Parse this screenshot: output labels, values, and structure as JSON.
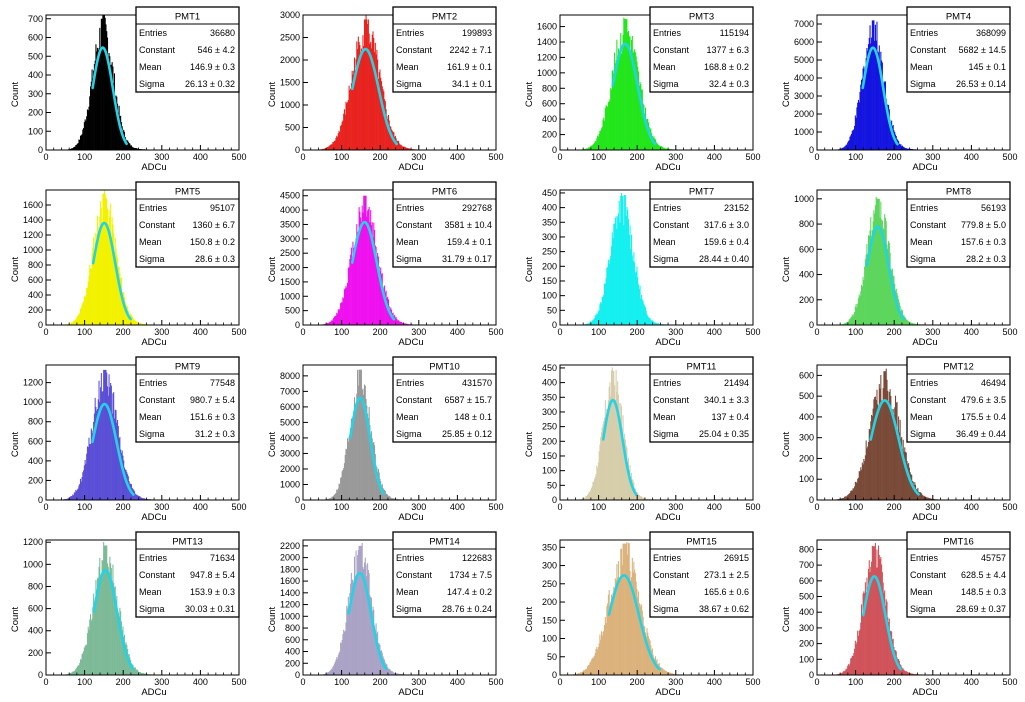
{
  "figure": {
    "shared_xlabel": "ADCu",
    "shared_ylabel": "Count",
    "x_ticks": [
      "0",
      "100",
      "200",
      "300",
      "400",
      "500"
    ],
    "stat_labels": [
      "Entries",
      "Constant",
      "Mean",
      "Sigma"
    ],
    "fit_color": "#22d3e6"
  },
  "chart_data": [
    {
      "type": "histogram",
      "title": "PMT1",
      "xlabel": "ADCu",
      "ylabel": "Count",
      "xlim": [
        0,
        500
      ],
      "ylim": [
        0,
        720
      ],
      "yticks": [
        0,
        100,
        200,
        300,
        400,
        500,
        600,
        700
      ],
      "color": "#000000",
      "entries": "36680",
      "constant": "546 ± 4.2",
      "mean": "146.9 ± 0.3",
      "sigma": "26.13 ± 0.32",
      "peak": 700,
      "mean_value": 146.9,
      "sigma_value": 26.13,
      "fit_peak": 546,
      "fit": true
    },
    {
      "type": "histogram",
      "title": "PMT2",
      "xlabel": "ADCu",
      "ylabel": "Count",
      "xlim": [
        0,
        500
      ],
      "ylim": [
        0,
        3000
      ],
      "yticks": [
        0,
        500,
        1000,
        1500,
        2000,
        2500,
        3000
      ],
      "color": "#e8231f",
      "entries": "199893",
      "constant": "2242 ± 7.1",
      "mean": "161.9 ± 0.1",
      "sigma": "34.1 ± 0.1",
      "peak": 2900,
      "mean_value": 161.9,
      "sigma_value": 34.1,
      "fit_peak": 2242,
      "fit": true
    },
    {
      "type": "histogram",
      "title": "PMT3",
      "xlabel": "ADCu",
      "ylabel": "Count",
      "xlim": [
        0,
        500
      ],
      "ylim": [
        0,
        1750
      ],
      "yticks": [
        0,
        200,
        400,
        600,
        800,
        1000,
        1200,
        1400,
        1600
      ],
      "color": "#22e61a",
      "entries": "115194",
      "constant": "1377 ± 6.3",
      "mean": "168.8 ± 0.2",
      "sigma": "32.4 ± 0.3",
      "peak": 1700,
      "mean_value": 168.8,
      "sigma_value": 32.4,
      "fit_peak": 1377,
      "fit": true
    },
    {
      "type": "histogram",
      "title": "PMT4",
      "xlabel": "ADCu",
      "ylabel": "Count",
      "xlim": [
        0,
        500
      ],
      "ylim": [
        0,
        7500
      ],
      "yticks": [
        0,
        1000,
        2000,
        3000,
        4000,
        5000,
        6000,
        7000
      ],
      "color": "#1414e0",
      "entries": "368099",
      "constant": "5682 ± 14.5",
      "mean": "145 ± 0.1",
      "sigma": "26.53 ± 0.14",
      "peak": 7200,
      "mean_value": 145,
      "sigma_value": 26.53,
      "fit_peak": 5682,
      "fit": true
    },
    {
      "type": "histogram",
      "title": "PMT5",
      "xlabel": "ADCu",
      "ylabel": "Count",
      "xlim": [
        0,
        500
      ],
      "ylim": [
        0,
        1800
      ],
      "yticks": [
        0,
        200,
        400,
        600,
        800,
        1000,
        1200,
        1400,
        1600
      ],
      "color": "#f2f200",
      "entries": "95107",
      "constant": "1360 ± 6.7",
      "mean": "150.8 ± 0.2",
      "sigma": "28.6 ± 0.3",
      "peak": 1750,
      "mean_value": 150.8,
      "sigma_value": 28.6,
      "fit_peak": 1360,
      "fit": true
    },
    {
      "type": "histogram",
      "title": "PMT6",
      "xlabel": "ADCu",
      "ylabel": "Count",
      "xlim": [
        0,
        500
      ],
      "ylim": [
        0,
        4700
      ],
      "yticks": [
        0,
        500,
        1000,
        1500,
        2000,
        2500,
        3000,
        3500,
        4000,
        4500
      ],
      "color": "#ee11ee",
      "entries": "292768",
      "constant": "3581 ± 10.4",
      "mean": "159.4 ± 0.1",
      "sigma": "31.79 ± 0.17",
      "peak": 4500,
      "mean_value": 159.4,
      "sigma_value": 31.79,
      "fit_peak": 3581,
      "fit": true
    },
    {
      "type": "histogram",
      "title": "PMT7",
      "xlabel": "ADCu",
      "ylabel": "Count",
      "xlim": [
        0,
        500
      ],
      "ylim": [
        0,
        460
      ],
      "yticks": [
        0,
        50,
        100,
        150,
        200,
        250,
        300,
        350,
        400,
        450
      ],
      "color": "#14f0f0",
      "entries": "23152",
      "constant": "317.6 ± 3.0",
      "mean": "159.6 ± 0.4",
      "sigma": "28.44 ± 0.40",
      "peak": 440,
      "mean_value": 159.6,
      "sigma_value": 28.44,
      "fit_peak": 317.6,
      "fit": false
    },
    {
      "type": "histogram",
      "title": "PMT8",
      "xlabel": "ADCu",
      "ylabel": "Count",
      "xlim": [
        0,
        500
      ],
      "ylim": [
        0,
        1070
      ],
      "yticks": [
        0,
        200,
        400,
        600,
        800,
        1000
      ],
      "color": "#5cd65c",
      "entries": "56193",
      "constant": "779.8 ± 5.0",
      "mean": "157.6 ± 0.3",
      "sigma": "28.2 ± 0.3",
      "peak": 1000,
      "mean_value": 157.6,
      "sigma_value": 28.2,
      "fit_peak": 779.8,
      "fit": true
    },
    {
      "type": "histogram",
      "title": "PMT9",
      "xlabel": "ADCu",
      "ylabel": "Count",
      "xlim": [
        0,
        500
      ],
      "ylim": [
        0,
        1380
      ],
      "yticks": [
        0,
        200,
        400,
        600,
        800,
        1000,
        1200
      ],
      "color": "#5a4fd6",
      "entries": "77548",
      "constant": "980.7 ± 5.4",
      "mean": "151.6 ± 0.3",
      "sigma": "31.2 ± 0.3",
      "peak": 1330,
      "mean_value": 151.6,
      "sigma_value": 31.2,
      "fit_peak": 980.7,
      "fit": true
    },
    {
      "type": "histogram",
      "title": "PMT10",
      "xlabel": "ADCu",
      "ylabel": "Count",
      "xlim": [
        0,
        500
      ],
      "ylim": [
        0,
        8700
      ],
      "yticks": [
        0,
        1000,
        2000,
        3000,
        4000,
        5000,
        6000,
        7000,
        8000
      ],
      "color": "#999999",
      "entries": "431570",
      "constant": "6587 ± 15.7",
      "mean": "148 ± 0.1",
      "sigma": "25.85 ± 0.12",
      "peak": 8400,
      "mean_value": 148,
      "sigma_value": 25.85,
      "fit_peak": 6587,
      "fit": true
    },
    {
      "type": "histogram",
      "title": "PMT11",
      "xlabel": "ADCu",
      "ylabel": "Count",
      "xlim": [
        0,
        500
      ],
      "ylim": [
        0,
        460
      ],
      "yticks": [
        0,
        50,
        100,
        150,
        200,
        250,
        300,
        350,
        400,
        450
      ],
      "color": "#d6cdaa",
      "entries": "21494",
      "constant": "340.1 ± 3.3",
      "mean": "137 ± 0.4",
      "sigma": "25.04 ± 0.35",
      "peak": 440,
      "mean_value": 137,
      "sigma_value": 25.04,
      "fit_peak": 340.1,
      "fit": true
    },
    {
      "type": "histogram",
      "title": "PMT12",
      "xlabel": "ADCu",
      "ylabel": "Count",
      "xlim": [
        0,
        500
      ],
      "ylim": [
        0,
        650
      ],
      "yticks": [
        0,
        100,
        200,
        300,
        400,
        500,
        600
      ],
      "color": "#7a4a38",
      "entries": "46494",
      "constant": "479.6 ± 3.5",
      "mean": "175.5 ± 0.4",
      "sigma": "36.49 ± 0.44",
      "peak": 620,
      "mean_value": 175.5,
      "sigma_value": 36.49,
      "fit_peak": 479.6,
      "fit": true
    },
    {
      "type": "histogram",
      "title": "PMT13",
      "xlabel": "ADCu",
      "ylabel": "Count",
      "xlim": [
        0,
        500
      ],
      "ylim": [
        0,
        1220
      ],
      "yticks": [
        0,
        200,
        400,
        600,
        800,
        1000,
        1200
      ],
      "color": "#7dba97",
      "entries": "71634",
      "constant": "947.8 ± 5.4",
      "mean": "153.9 ± 0.3",
      "sigma": "30.03 ± 0.31",
      "peak": 1170,
      "mean_value": 153.9,
      "sigma_value": 30.03,
      "fit_peak": 947.8,
      "fit": true
    },
    {
      "type": "histogram",
      "title": "PMT14",
      "xlabel": "ADCu",
      "ylabel": "Count",
      "xlim": [
        0,
        500
      ],
      "ylim": [
        0,
        2300
      ],
      "yticks": [
        0,
        200,
        400,
        600,
        800,
        1000,
        1200,
        1400,
        1600,
        1800,
        2000,
        2200
      ],
      "color": "#aaa3c6",
      "entries": "122683",
      "constant": "1734 ± 7.5",
      "mean": "147.4 ± 0.2",
      "sigma": "28.76 ± 0.24",
      "peak": 2200,
      "mean_value": 147.4,
      "sigma_value": 28.76,
      "fit_peak": 1734,
      "fit": true
    },
    {
      "type": "histogram",
      "title": "PMT15",
      "xlabel": "ADCu",
      "ylabel": "Count",
      "xlim": [
        0,
        500
      ],
      "ylim": [
        0,
        370
      ],
      "yticks": [
        0,
        50,
        100,
        150,
        200,
        250,
        300,
        350
      ],
      "color": "#dcb27c",
      "entries": "26915",
      "constant": "273.1 ± 2.5",
      "mean": "165.6 ± 0.6",
      "sigma": "38.67 ± 0.62",
      "peak": 360,
      "mean_value": 165.6,
      "sigma_value": 38.67,
      "fit_peak": 273.1,
      "fit": true
    },
    {
      "type": "histogram",
      "title": "PMT16",
      "xlabel": "ADCu",
      "ylabel": "Count",
      "xlim": [
        0,
        500
      ],
      "ylim": [
        0,
        860
      ],
      "yticks": [
        0,
        100,
        200,
        300,
        400,
        500,
        600,
        700,
        800
      ],
      "color": "#d0535a",
      "entries": "45757",
      "constant": "628.5 ± 4.4",
      "mean": "148.5 ± 0.3",
      "sigma": "28.69 ± 0.37",
      "peak": 820,
      "mean_value": 148.5,
      "sigma_value": 28.69,
      "fit_peak": 628.5,
      "fit": true
    }
  ]
}
